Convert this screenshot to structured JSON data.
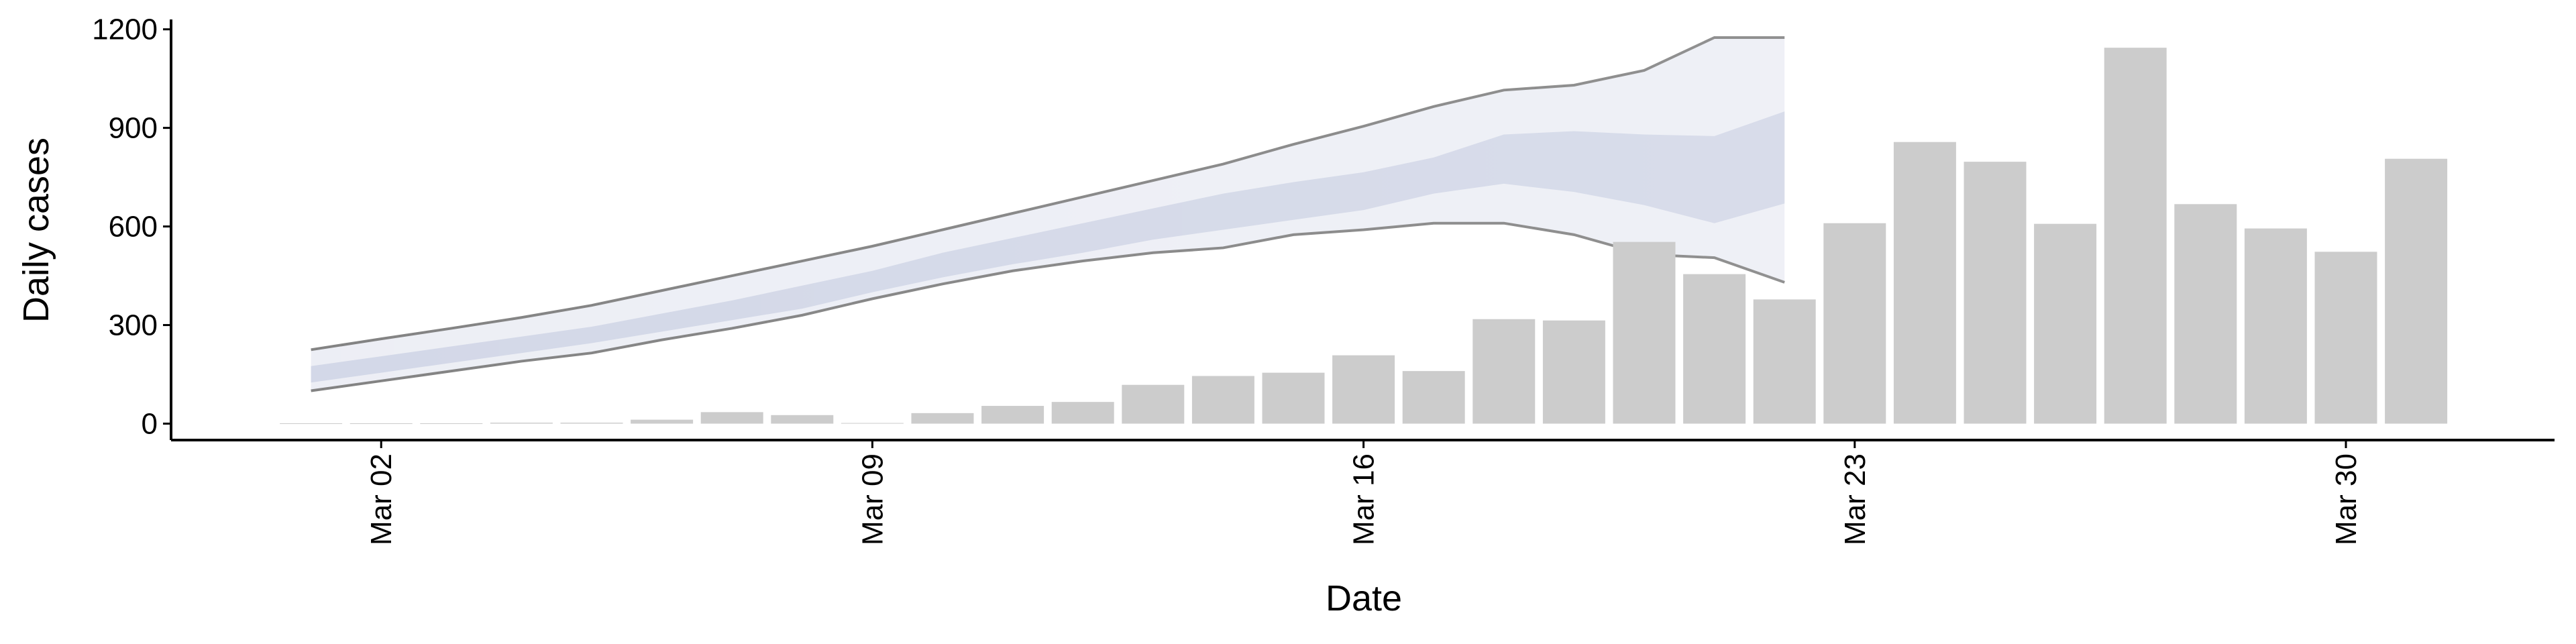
{
  "chart_data": {
    "type": "bar",
    "x_label": "Date",
    "y_label": "Daily cases",
    "categories": [
      "Mar 01",
      "Mar 02",
      "Mar 03",
      "Mar 04",
      "Mar 05",
      "Mar 06",
      "Mar 07",
      "Mar 08",
      "Mar 09",
      "Mar 10",
      "Mar 11",
      "Mar 12",
      "Mar 13",
      "Mar 14",
      "Mar 15",
      "Mar 16",
      "Mar 17",
      "Mar 18",
      "Mar 19",
      "Mar 20",
      "Mar 21",
      "Mar 22",
      "Mar 23",
      "Mar 24",
      "Mar 25",
      "Mar 26",
      "Mar 27",
      "Mar 28",
      "Mar 29",
      "Mar 30",
      "Mar 31"
    ],
    "values": [
      1,
      1,
      1,
      3,
      3,
      12,
      35,
      26,
      2,
      32,
      54,
      66,
      118,
      145,
      155,
      208,
      160,
      318,
      314,
      553,
      455,
      378,
      610,
      857,
      797,
      608,
      1144,
      668,
      594,
      523,
      806
    ],
    "color": "#cccccc",
    "bands": [
      {
        "upper": [
          225,
          258,
          290,
          323,
          360,
          405,
          450,
          495,
          540,
          590,
          640,
          690,
          740,
          790,
          850,
          905,
          965,
          1015,
          1030,
          1075,
          1175,
          1175
        ],
        "lower": [
          100,
          130,
          160,
          190,
          215,
          255,
          290,
          330,
          380,
          425,
          465,
          495,
          520,
          535,
          575,
          590,
          610,
          610,
          575,
          515,
          505,
          430
        ],
        "color": "#eceef5",
        "line_color": "#808080"
      },
      {
        "upper": [
          175,
          205,
          235,
          265,
          295,
          335,
          375,
          420,
          465,
          520,
          565,
          610,
          655,
          700,
          735,
          765,
          810,
          880,
          890,
          880,
          875,
          950
        ],
        "lower": [
          125,
          155,
          185,
          215,
          245,
          280,
          315,
          350,
          400,
          445,
          485,
          520,
          560,
          590,
          620,
          650,
          700,
          730,
          705,
          665,
          610,
          670
        ],
        "color": "#d2d7e7"
      }
    ],
    "ylim": [
      -50,
      1230
    ],
    "yticks": [
      0,
      300,
      600,
      900,
      1200
    ],
    "xticks": [
      "Mar 02",
      "Mar 09",
      "Mar 16",
      "Mar 23",
      "Mar 30"
    ]
  }
}
